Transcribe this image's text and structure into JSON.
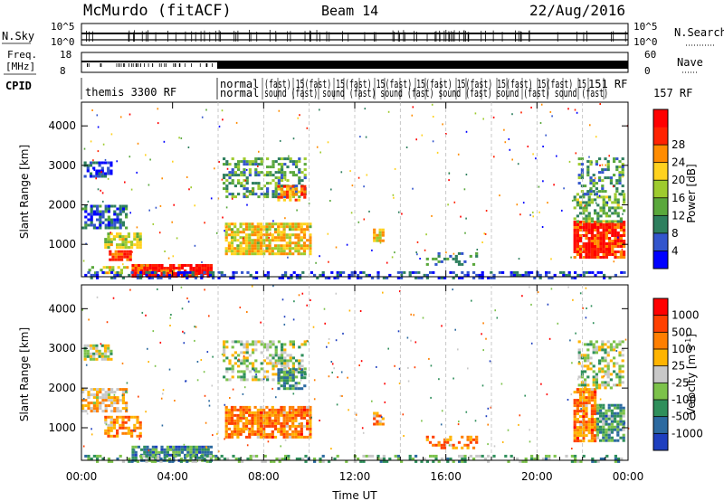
{
  "header": {
    "station": "McMurdo (fitACF)",
    "beam": "Beam 14",
    "date": "22/Aug/2016"
  },
  "panels": {
    "nsky": {
      "label": "N.Sky",
      "right_label": "N.Search",
      "ticks": [
        "10^5",
        "10^0"
      ],
      "right_ticks": [
        "10^5",
        "10^0"
      ]
    },
    "freq": {
      "label_line1": "Freq.",
      "label_line2": "[MHz]",
      "right_label": "Nave",
      "ticks": [
        "18",
        "8"
      ],
      "right_ticks": [
        "60",
        "0"
      ]
    },
    "cpid": {
      "label": "CPID",
      "first": "themis 3300 RF",
      "row1": "normal (fast) 151 RF",
      "row2": "normal sound (fast) 157 RF",
      "row1_clutter": "(fast) 15(fast) 15(fast) 15(fast) 15(fast) 15(fast) 15(fast) 15(fast) 15",
      "row2_clutter": "sound (fast) sound (fast) sound (fast) sound (fast) sound (fast) sound (fast)"
    }
  },
  "xaxis": {
    "title": "Time UT",
    "ticks": [
      "00:00",
      "04:00",
      "08:00",
      "12:00",
      "16:00",
      "20:00",
      "00:00"
    ]
  },
  "chart_data": [
    {
      "type": "heatmap",
      "name": "Power",
      "ylabel": "Slant Range [km]",
      "yticks": [
        1000,
        2000,
        3000,
        4000
      ],
      "ylim": [
        180,
        4600
      ],
      "xlim_hours": [
        0,
        24
      ],
      "colorbar_label": "Power [dB]",
      "colorbar_ticks": [
        "4",
        "8",
        "12",
        "16",
        "20",
        "24",
        "28"
      ],
      "colorbar_colors": [
        "#0000ff",
        "#3355cc",
        "#2e7f5e",
        "#5aa83c",
        "#9ecb2e",
        "#ffd21e",
        "#ff8c00",
        "#ff2200",
        "#ff0000"
      ],
      "regions": [
        {
          "t": [
            0.1,
            1.3
          ],
          "r": [
            2700,
            3100
          ],
          "level": 0.15,
          "density": 0.7
        },
        {
          "t": [
            0.0,
            2.0
          ],
          "r": [
            1400,
            2000
          ],
          "level": 0.2,
          "density": 0.6
        },
        {
          "t": [
            1.0,
            2.6
          ],
          "r": [
            900,
            1300
          ],
          "level": 0.5,
          "density": 0.75
        },
        {
          "t": [
            1.2,
            2.1
          ],
          "r": [
            600,
            850
          ],
          "level": 0.85,
          "density": 0.85
        },
        {
          "t": [
            2.2,
            5.7
          ],
          "r": [
            200,
            500
          ],
          "level": 0.9,
          "density": 0.9
        },
        {
          "t": [
            0.3,
            2.0
          ],
          "r": [
            250,
            450
          ],
          "level": 0.55,
          "density": 0.5
        },
        {
          "t": [
            6.2,
            9.8
          ],
          "r": [
            2200,
            3200
          ],
          "level": 0.35,
          "density": 0.45
        },
        {
          "t": [
            8.6,
            9.8
          ],
          "r": [
            2150,
            2500
          ],
          "level": 0.75,
          "density": 0.7
        },
        {
          "t": [
            6.3,
            10.0
          ],
          "r": [
            750,
            1550
          ],
          "level": 0.6,
          "density": 0.8
        },
        {
          "t": [
            12.8,
            13.2
          ],
          "r": [
            1100,
            1400
          ],
          "level": 0.6,
          "density": 0.7
        },
        {
          "t": [
            15.0,
            17.4
          ],
          "r": [
            500,
            800
          ],
          "level": 0.25,
          "density": 0.35
        },
        {
          "t": [
            21.6,
            23.8
          ],
          "r": [
            700,
            1600
          ],
          "level": 0.85,
          "density": 0.9
        },
        {
          "t": [
            21.6,
            23.8
          ],
          "r": [
            1600,
            2300
          ],
          "level": 0.4,
          "density": 0.55
        },
        {
          "t": [
            21.8,
            23.8
          ],
          "r": [
            2300,
            3200
          ],
          "level": 0.3,
          "density": 0.4
        },
        {
          "t": [
            0.0,
            24.0
          ],
          "r": [
            180,
            320
          ],
          "level": 0.15,
          "density": 0.35
        }
      ]
    },
    {
      "type": "heatmap",
      "name": "Velocity",
      "ylabel": "Slant Range [km]",
      "yticks": [
        1000,
        2000,
        3000,
        4000
      ],
      "ylim": [
        180,
        4600
      ],
      "xlim_hours": [
        0,
        24
      ],
      "colorbar_label": "Velocity [m s^-1]",
      "colorbar_ticks": [
        "1000",
        "500",
        "100",
        "25",
        "-25",
        "-100",
        "-500",
        "-1000"
      ],
      "colorbar_colors": [
        "#1e3fbf",
        "#2c6aa0",
        "#2f8f5b",
        "#7cc24a",
        "#c8c8c8",
        "#ffb400",
        "#ff7f00",
        "#ff4000",
        "#ff0000"
      ],
      "regions": [
        {
          "t": [
            0.1,
            1.3
          ],
          "r": [
            2700,
            3100
          ],
          "level": 0.45,
          "density": 0.7
        },
        {
          "t": [
            0.0,
            2.0
          ],
          "r": [
            1400,
            2000
          ],
          "level": 0.6,
          "density": 0.6
        },
        {
          "t": [
            1.0,
            2.6
          ],
          "r": [
            800,
            1300
          ],
          "level": 0.7,
          "density": 0.65
        },
        {
          "t": [
            2.2,
            5.7
          ],
          "r": [
            200,
            550
          ],
          "level": 0.25,
          "density": 0.8
        },
        {
          "t": [
            6.2,
            9.8
          ],
          "r": [
            2200,
            3200
          ],
          "level": 0.45,
          "density": 0.45
        },
        {
          "t": [
            8.6,
            9.8
          ],
          "r": [
            2000,
            2500
          ],
          "level": 0.3,
          "density": 0.6
        },
        {
          "t": [
            6.3,
            10.0
          ],
          "r": [
            750,
            1550
          ],
          "level": 0.72,
          "density": 0.8
        },
        {
          "t": [
            12.8,
            13.2
          ],
          "r": [
            1100,
            1400
          ],
          "level": 0.72,
          "density": 0.7
        },
        {
          "t": [
            15.0,
            17.4
          ],
          "r": [
            500,
            800
          ],
          "level": 0.7,
          "density": 0.4
        },
        {
          "t": [
            21.6,
            22.6
          ],
          "r": [
            700,
            2000
          ],
          "level": 0.72,
          "density": 0.85
        },
        {
          "t": [
            22.6,
            23.8
          ],
          "r": [
            700,
            1600
          ],
          "level": 0.28,
          "density": 0.8
        },
        {
          "t": [
            21.8,
            23.8
          ],
          "r": [
            2000,
            3200
          ],
          "level": 0.45,
          "density": 0.45
        },
        {
          "t": [
            0.0,
            24.0
          ],
          "r": [
            180,
            320
          ],
          "level": 0.35,
          "density": 0.35
        }
      ]
    }
  ]
}
